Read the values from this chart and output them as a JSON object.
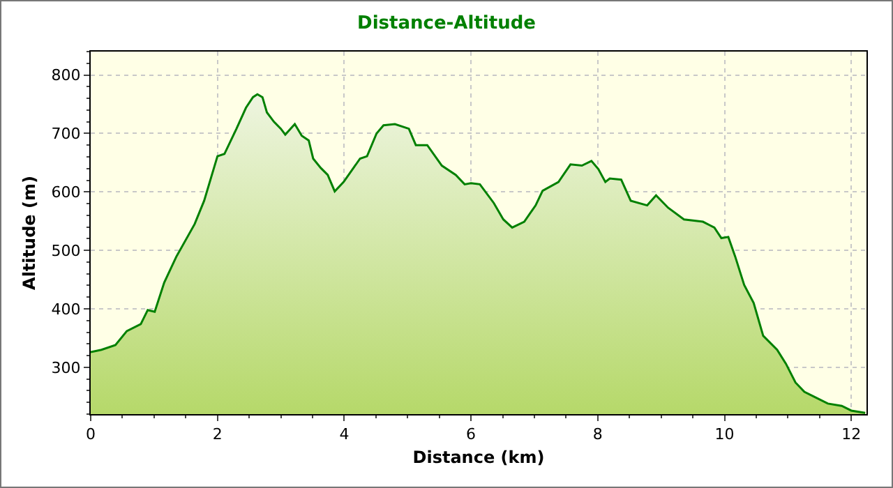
{
  "chart_data": {
    "type": "area",
    "title": "Distance-Altitude",
    "xlabel": "Distance (km)",
    "ylabel": "Altitude (m)",
    "xlim": [
      0,
      12.24
    ],
    "xticks": [
      0,
      2,
      4,
      6,
      8,
      10,
      12
    ],
    "ylim": [
      220,
      840
    ],
    "yticks": [
      300,
      400,
      500,
      600,
      700,
      800
    ],
    "grid": true,
    "legend": false,
    "series": [
      {
        "color": "#008000",
        "x": [
          0,
          0.17,
          0.39,
          0.57,
          0.79,
          0.9,
          1.01,
          1.16,
          1.35,
          1.64,
          1.79,
          2.0,
          2.11,
          2.3,
          2.45,
          2.56,
          2.63,
          2.71,
          2.78,
          2.89,
          3.0,
          3.07,
          3.22,
          3.33,
          3.44,
          3.51,
          3.63,
          3.74,
          3.85,
          3.99,
          4.25,
          4.36,
          4.51,
          4.62,
          4.8,
          5.02,
          5.13,
          5.31,
          5.54,
          5.76,
          5.9,
          6.0,
          6.14,
          6.36,
          6.51,
          6.65,
          6.84,
          7.02,
          7.13,
          7.38,
          7.57,
          7.75,
          7.9,
          8.01,
          8.12,
          8.19,
          8.37,
          8.52,
          8.78,
          8.92,
          9.11,
          9.36,
          9.66,
          9.84,
          9.95,
          10.06,
          10.17,
          10.31,
          10.46,
          10.61,
          10.83,
          10.97,
          11.12,
          11.26,
          11.41,
          11.63,
          11.85,
          12.0,
          12.22
        ],
        "values": [
          326,
          330,
          338,
          362,
          374,
          398,
          395,
          445,
          489,
          545,
          585,
          661,
          665,
          708,
          744,
          762,
          767,
          762,
          736,
          720,
          708,
          698,
          716,
          696,
          688,
          657,
          641,
          629,
          601,
          617,
          657,
          661,
          700,
          714,
          716,
          708,
          680,
          680,
          645,
          629,
          613,
          615,
          613,
          581,
          553,
          539,
          549,
          577,
          602,
          617,
          647,
          645,
          653,
          639,
          617,
          623,
          621,
          585,
          577,
          594,
          573,
          553,
          549,
          539,
          521,
          523,
          489,
          441,
          410,
          354,
          330,
          306,
          274,
          258,
          250,
          238,
          234,
          226,
          222
        ]
      }
    ]
  }
}
